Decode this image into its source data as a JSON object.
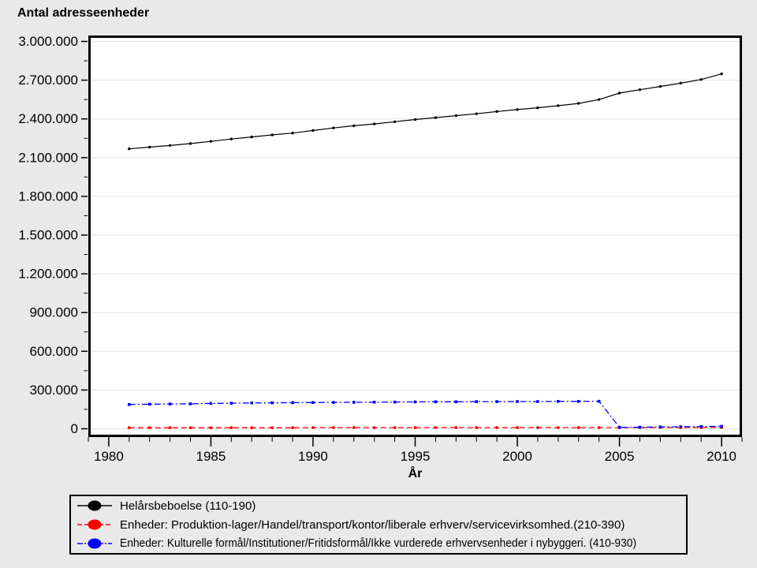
{
  "title": "Antal adresseenheder",
  "x_axis_label": "År",
  "colors": {
    "background": "#e9e9e9",
    "plot_background": "#ffffff",
    "gridline": "#e2e2e2",
    "frame": "#000000",
    "series_black": "#000000",
    "series_red": "#ff0000",
    "series_blue": "#0000ff"
  },
  "legend": {
    "items": [
      {
        "label": "Helårsbeboelse (110-190)",
        "color": "#000000",
        "dash": "solid",
        "dash_array": "none",
        "marker": "filled-ellipse"
      },
      {
        "label": "Enheder: Produktion-lager/Handel/transport/kontor/liberale erhverv/servicevirksomhed.(210-390)",
        "color": "#ff0000",
        "dash": "dashed",
        "dash_array": "6,3",
        "marker": "filled-ellipse"
      },
      {
        "label": "Enheder: Kulturelle formål/Institutioner/Fritidsformål/Ikke vurderede erhvervsenheder i nybyggeri. (410-930)",
        "color": "#0000ff",
        "dash": "dash-dot",
        "dash_array": "7,2,2,2",
        "marker": "filled-ellipse"
      }
    ]
  },
  "chart_data": {
    "type": "line",
    "title": "Antal adresseenheder",
    "xlabel": "År",
    "ylabel": "Antal adresseenheder",
    "x_range": [
      1979,
      2011
    ],
    "y_range": [
      0,
      3000000
    ],
    "x_major_ticks": [
      1980,
      1985,
      1990,
      1995,
      2000,
      2005,
      2010
    ],
    "x_minor_tick_step": 1,
    "y_major_tick_step": 300000,
    "y_minor_tick_step": 150000,
    "grid": "horizontal-major",
    "legend_position": "bottom",
    "years": [
      1981,
      1982,
      1983,
      1984,
      1985,
      1986,
      1987,
      1988,
      1989,
      1990,
      1991,
      1992,
      1993,
      1994,
      1995,
      1996,
      1997,
      1998,
      1999,
      2000,
      2001,
      2002,
      2003,
      2004,
      2005,
      2006,
      2007,
      2008,
      2009,
      2010
    ],
    "series": [
      {
        "name": "Helårsbeboelse (110-190)",
        "color": "#000000",
        "line_style": "solid",
        "dash_array": "none",
        "marker": "dot",
        "values": [
          2168000,
          2181000,
          2194000,
          2209000,
          2226000,
          2244000,
          2260000,
          2276000,
          2290000,
          2310000,
          2330000,
          2347000,
          2361000,
          2378000,
          2395000,
          2410000,
          2425000,
          2440000,
          2457000,
          2472000,
          2486000,
          2502000,
          2520000,
          2550000,
          2600000,
          2626000,
          2651000,
          2677000,
          2705000,
          2749000
        ]
      },
      {
        "name": "Enheder: Produktion-lager/Handel/transport/kontor/liberale erhverv/servicevirksomhed.(210-390)",
        "color": "#ff0000",
        "line_style": "dashed",
        "dash_array": "7,4",
        "marker": "filled-circle",
        "values": [
          8000,
          8000,
          8000,
          8000,
          8000,
          8000,
          8000,
          8000,
          8000,
          9000,
          9000,
          9000,
          9000,
          9000,
          9000,
          9000,
          9000,
          9000,
          9000,
          9000,
          9000,
          9000,
          9000,
          9000,
          9000,
          9000,
          10000,
          10000,
          10000,
          10000
        ]
      },
      {
        "name": "Enheder: Kulturelle formål/Institutioner/Fritidsformål/Ikke vurderede erhvervsenheder i nybyggeri. (410-930)",
        "color": "#0000ff",
        "line_style": "dash-dot",
        "dash_array": "8,3,2,3",
        "marker": "filled-square",
        "values": [
          188000,
          190000,
          192000,
          193000,
          196000,
          198000,
          200000,
          201000,
          202000,
          203000,
          204000,
          205000,
          206000,
          207000,
          208000,
          209000,
          209000,
          210000,
          210000,
          211000,
          211000,
          212000,
          212000,
          213000,
          11000,
          12000,
          14000,
          15000,
          17000,
          19000
        ]
      }
    ]
  }
}
